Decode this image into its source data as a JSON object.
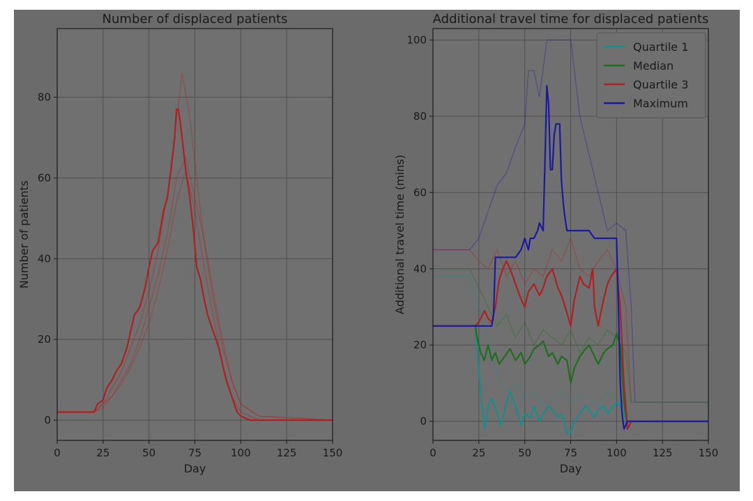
{
  "chart_data": [
    {
      "type": "line",
      "title": "Number of displaced patients",
      "xlabel": "Day",
      "ylabel": "Number of patients",
      "xlim": [
        0,
        150
      ],
      "ylim": [
        -5,
        97
      ],
      "xticks": [
        0,
        25,
        50,
        75,
        100,
        125,
        150
      ],
      "yticks": [
        0,
        20,
        40,
        60,
        80
      ],
      "grid": true,
      "series": [
        {
          "color": "#b02020",
          "x": [
            0,
            5,
            10,
            15,
            18,
            20,
            22,
            25,
            27,
            30,
            32,
            35,
            38,
            40,
            42,
            45,
            48,
            50,
            52,
            55,
            58,
            60,
            62,
            64,
            65,
            66,
            67,
            68,
            70,
            72,
            74,
            76,
            78,
            80,
            82,
            85,
            88,
            90,
            92,
            95,
            98,
            100,
            105,
            110,
            150
          ],
          "y": [
            2,
            2,
            2,
            2,
            2,
            2,
            4,
            5,
            8,
            10,
            12,
            14,
            18,
            22,
            26,
            28,
            33,
            38,
            42,
            44,
            52,
            55,
            62,
            70,
            77,
            77,
            74,
            70,
            62,
            56,
            48,
            38,
            35,
            30,
            26,
            22,
            18,
            14,
            10,
            6,
            2,
            1,
            0,
            0,
            0
          ]
        }
      ],
      "background_series": [
        {
          "color": "#b02020",
          "opacity": 0.35,
          "x": [
            0,
            20,
            25,
            30,
            35,
            40,
            45,
            50,
            55,
            60,
            64,
            68,
            72,
            76,
            80,
            85,
            90,
            95,
            100,
            110,
            150
          ],
          "y": [
            2,
            2,
            4,
            8,
            12,
            18,
            24,
            32,
            42,
            56,
            70,
            86,
            76,
            60,
            44,
            30,
            18,
            10,
            4,
            1,
            0
          ]
        },
        {
          "color": "#b02020",
          "opacity": 0.35,
          "x": [
            0,
            20,
            25,
            30,
            35,
            40,
            45,
            50,
            55,
            60,
            65,
            70,
            75,
            80,
            85,
            90,
            95,
            100,
            110,
            150
          ],
          "y": [
            2,
            2,
            3,
            6,
            10,
            14,
            20,
            28,
            36,
            46,
            60,
            65,
            55,
            45,
            32,
            20,
            10,
            4,
            1,
            0
          ]
        },
        {
          "color": "#b02020",
          "opacity": 0.35,
          "x": [
            0,
            20,
            25,
            30,
            35,
            40,
            45,
            50,
            55,
            60,
            65,
            70,
            75,
            80,
            85,
            90,
            95,
            100,
            110,
            150
          ],
          "y": [
            2,
            2,
            4,
            6,
            9,
            13,
            18,
            24,
            32,
            42,
            54,
            62,
            52,
            38,
            26,
            14,
            6,
            2,
            0,
            0
          ]
        }
      ]
    },
    {
      "type": "line",
      "title": "Additional travel time for displaced patients",
      "xlabel": "Day",
      "ylabel": "Additional travel time (mins)",
      "xlim": [
        0,
        150
      ],
      "ylim": [
        -5,
        103
      ],
      "xticks": [
        0,
        25,
        50,
        75,
        100,
        125,
        150
      ],
      "yticks": [
        0,
        20,
        40,
        60,
        80,
        100
      ],
      "grid": true,
      "legend": "top-right",
      "series": [
        {
          "name": "Quartile 1",
          "color": "#1a8c8c",
          "x": [
            0,
            23,
            24,
            26,
            28,
            30,
            32,
            35,
            37,
            39,
            42,
            45,
            48,
            50,
            53,
            55,
            58,
            60,
            63,
            65,
            68,
            70,
            73,
            75,
            77,
            80,
            83,
            85,
            88,
            90,
            93,
            95,
            98,
            100,
            102,
            104,
            106,
            108,
            150
          ],
          "y": [
            25,
            25,
            18,
            8,
            -2,
            4,
            6,
            2,
            -1,
            3,
            8,
            4,
            -1,
            2,
            1,
            4,
            0,
            2,
            4,
            3,
            1,
            2,
            -3,
            -3,
            0,
            2,
            4,
            3,
            1,
            3,
            4,
            2,
            4,
            5,
            4,
            2,
            -2,
            0,
            0
          ]
        },
        {
          "name": "Median",
          "color": "#1e6e1e",
          "x": [
            0,
            23,
            24,
            26,
            28,
            30,
            32,
            34,
            36,
            39,
            42,
            45,
            48,
            50,
            53,
            55,
            58,
            60,
            63,
            65,
            68,
            70,
            73,
            75,
            77,
            80,
            83,
            85,
            88,
            90,
            93,
            95,
            98,
            100,
            102,
            104,
            106,
            108,
            150
          ],
          "y": [
            25,
            25,
            22,
            18,
            16,
            20,
            16,
            18,
            15,
            17,
            19,
            16,
            18,
            15,
            17,
            19,
            20,
            21,
            17,
            18,
            15,
            17,
            16,
            10,
            14,
            17,
            19,
            20,
            17,
            15,
            18,
            19,
            20,
            23,
            20,
            5,
            -2,
            0,
            0
          ]
        },
        {
          "name": "Quartile 3",
          "color": "#b02020",
          "x": [
            0,
            23,
            25,
            28,
            30,
            32,
            34,
            36,
            38,
            40,
            42,
            45,
            48,
            50,
            52,
            55,
            58,
            60,
            62,
            65,
            68,
            70,
            72,
            75,
            77,
            80,
            82,
            85,
            87,
            88,
            90,
            92,
            95,
            97,
            100,
            102,
            104,
            106,
            108,
            150
          ],
          "y": [
            25,
            25,
            26,
            29,
            27,
            26,
            30,
            37,
            40,
            42,
            40,
            36,
            32,
            30,
            34,
            36,
            33,
            35,
            38,
            40,
            35,
            33,
            30,
            25,
            32,
            38,
            36,
            35,
            40,
            30,
            25,
            30,
            36,
            38,
            40,
            30,
            10,
            -2,
            0,
            0
          ]
        },
        {
          "name": "Maximum",
          "color": "#1a1aa0",
          "x": [
            0,
            30,
            32,
            33,
            34,
            40,
            45,
            48,
            50,
            52,
            53,
            55,
            57,
            58,
            60,
            61,
            62,
            63,
            64,
            65,
            66,
            67,
            68,
            69,
            70,
            71,
            72,
            73,
            74,
            75,
            80,
            85,
            88,
            90,
            92,
            95,
            100,
            101,
            102,
            103,
            104,
            105,
            106,
            108,
            150
          ],
          "y": [
            25,
            25,
            25,
            28,
            43,
            43,
            43,
            45,
            48,
            45,
            48,
            48,
            50,
            52,
            50,
            68,
            88,
            83,
            66,
            66,
            75,
            78,
            78,
            78,
            63,
            57,
            53,
            50,
            50,
            50,
            50,
            50,
            48,
            48,
            48,
            48,
            48,
            30,
            10,
            2,
            -2,
            -1,
            0,
            0,
            0
          ]
        }
      ],
      "background_series": [
        {
          "color": "#1a1aa0",
          "opacity": 0.35,
          "x": [
            0,
            20,
            25,
            30,
            35,
            40,
            45,
            50,
            52,
            55,
            58,
            62,
            65,
            70,
            75,
            80,
            85,
            90,
            95,
            100,
            105,
            108,
            110,
            150
          ],
          "y": [
            45,
            45,
            48,
            55,
            62,
            65,
            72,
            78,
            92,
            92,
            85,
            100,
            100,
            100,
            100,
            80,
            70,
            60,
            50,
            52,
            50,
            30,
            5,
            5
          ]
        },
        {
          "color": "#b02020",
          "opacity": 0.35,
          "x": [
            0,
            20,
            25,
            30,
            35,
            40,
            45,
            50,
            55,
            60,
            65,
            70,
            75,
            80,
            85,
            90,
            95,
            100,
            105,
            108,
            150
          ],
          "y": [
            45,
            45,
            42,
            40,
            45,
            38,
            42,
            36,
            40,
            38,
            45,
            42,
            48,
            40,
            38,
            42,
            45,
            40,
            30,
            5,
            5
          ]
        },
        {
          "color": "#1e6e1e",
          "opacity": 0.35,
          "x": [
            0,
            20,
            25,
            30,
            35,
            40,
            45,
            50,
            55,
            60,
            65,
            70,
            75,
            80,
            85,
            90,
            95,
            100,
            105,
            108,
            150
          ],
          "y": [
            40,
            40,
            35,
            30,
            25,
            28,
            22,
            26,
            20,
            24,
            22,
            20,
            24,
            18,
            22,
            20,
            24,
            22,
            18,
            5,
            5
          ]
        },
        {
          "color": "#1a8c8c",
          "opacity": 0.35,
          "x": [
            0,
            20,
            25,
            30,
            35,
            40,
            45,
            50,
            55,
            60,
            65,
            70,
            75,
            80,
            85,
            90,
            95,
            100,
            105,
            108,
            150
          ],
          "y": [
            38,
            38,
            30,
            22,
            12,
            8,
            10,
            6,
            8,
            4,
            6,
            8,
            5,
            7,
            6,
            4,
            8,
            6,
            4,
            5,
            5
          ]
        }
      ]
    }
  ]
}
